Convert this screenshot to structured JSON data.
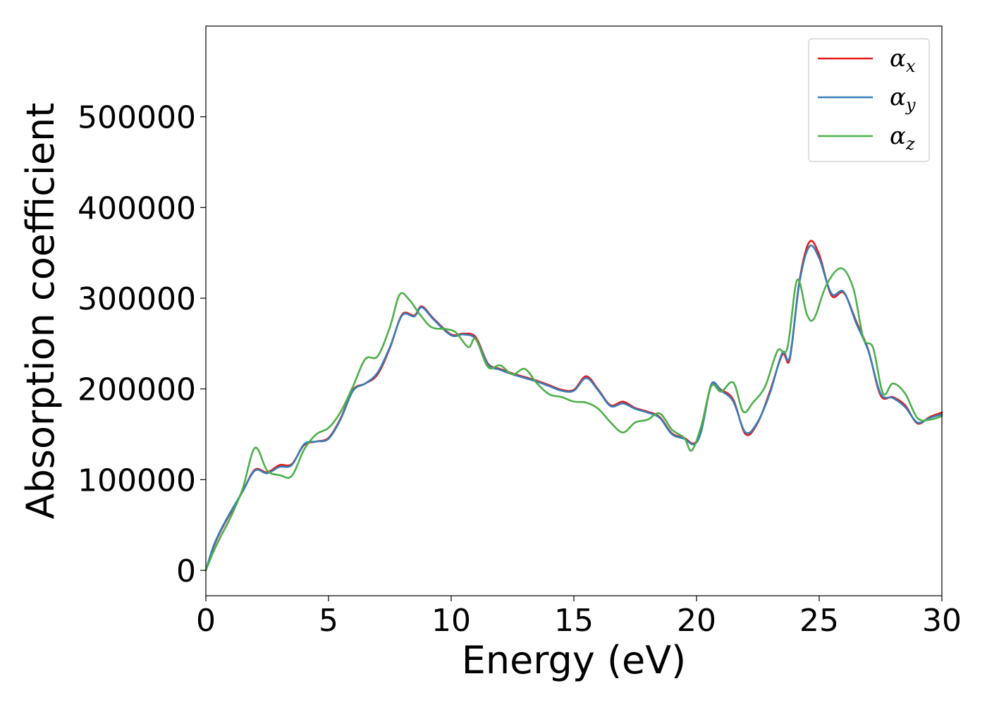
{
  "chart_data": {
    "type": "line",
    "title": "",
    "xlabel": "Energy (eV)",
    "ylabel": "Absorption coefficient",
    "xlim": [
      0,
      30
    ],
    "ylim": [
      -28000,
      600000
    ],
    "xticks": [
      0,
      5,
      10,
      15,
      20,
      25,
      30
    ],
    "yticks": [
      0,
      100000,
      200000,
      300000,
      400000,
      500000
    ],
    "grid": false,
    "legend_position": "top-right",
    "series": [
      {
        "name": "α",
        "subscript": "x",
        "color": "#e41a1c",
        "points": [
          [
            0,
            0
          ],
          [
            0.3,
            25000
          ],
          [
            0.6,
            43000
          ],
          [
            1.0,
            63000
          ],
          [
            1.5,
            87000
          ],
          [
            2.0,
            111000
          ],
          [
            2.5,
            108000
          ],
          [
            3.0,
            116000
          ],
          [
            3.5,
            117000
          ],
          [
            4.0,
            138000
          ],
          [
            4.5,
            142000
          ],
          [
            5.0,
            146000
          ],
          [
            5.5,
            168000
          ],
          [
            6.0,
            199000
          ],
          [
            6.5,
            206000
          ],
          [
            7.0,
            216000
          ],
          [
            7.5,
            245000
          ],
          [
            8.0,
            282000
          ],
          [
            8.5,
            281000
          ],
          [
            8.8,
            291000
          ],
          [
            9.3,
            277000
          ],
          [
            10.0,
            260000
          ],
          [
            10.5,
            261000
          ],
          [
            11.0,
            257000
          ],
          [
            11.5,
            228000
          ],
          [
            12.0,
            222000
          ],
          [
            12.5,
            217000
          ],
          [
            13.0,
            213000
          ],
          [
            13.5,
            209000
          ],
          [
            14.0,
            204000
          ],
          [
            14.5,
            199000
          ],
          [
            15.0,
            199000
          ],
          [
            15.5,
            214000
          ],
          [
            16.0,
            199000
          ],
          [
            16.5,
            182000
          ],
          [
            17.0,
            186000
          ],
          [
            17.5,
            179000
          ],
          [
            18.0,
            175000
          ],
          [
            18.5,
            169000
          ],
          [
            19.0,
            151000
          ],
          [
            19.5,
            146000
          ],
          [
            19.9,
            140000
          ],
          [
            20.2,
            155000
          ],
          [
            20.6,
            204000
          ],
          [
            21.0,
            199000
          ],
          [
            21.5,
            188000
          ],
          [
            22.0,
            150000
          ],
          [
            22.5,
            163000
          ],
          [
            23.0,
            198000
          ],
          [
            23.5,
            238000
          ],
          [
            23.8,
            233000
          ],
          [
            24.2,
            320000
          ],
          [
            24.6,
            362000
          ],
          [
            25.0,
            348000
          ],
          [
            25.5,
            303000
          ],
          [
            26.0,
            306000
          ],
          [
            26.5,
            275000
          ],
          [
            27.0,
            243000
          ],
          [
            27.5,
            193000
          ],
          [
            28.0,
            191000
          ],
          [
            28.5,
            182000
          ],
          [
            29.0,
            162000
          ],
          [
            29.5,
            169000
          ],
          [
            30.0,
            174000
          ]
        ]
      },
      {
        "name": "α",
        "subscript": "y",
        "color": "#377eb8",
        "points": [
          [
            0,
            0
          ],
          [
            0.3,
            26000
          ],
          [
            0.6,
            44000
          ],
          [
            1.0,
            64000
          ],
          [
            1.5,
            87000
          ],
          [
            2.0,
            110000
          ],
          [
            2.5,
            107000
          ],
          [
            3.0,
            114000
          ],
          [
            3.5,
            116000
          ],
          [
            4.0,
            139000
          ],
          [
            4.5,
            142000
          ],
          [
            5.0,
            145000
          ],
          [
            5.5,
            167000
          ],
          [
            6.0,
            198000
          ],
          [
            6.5,
            206000
          ],
          [
            7.0,
            218000
          ],
          [
            7.5,
            246000
          ],
          [
            8.0,
            281000
          ],
          [
            8.5,
            280000
          ],
          [
            8.8,
            290000
          ],
          [
            9.3,
            276000
          ],
          [
            10.0,
            259000
          ],
          [
            10.5,
            260000
          ],
          [
            11.0,
            255000
          ],
          [
            11.5,
            227000
          ],
          [
            12.0,
            221000
          ],
          [
            12.5,
            216000
          ],
          [
            13.0,
            212000
          ],
          [
            13.5,
            208000
          ],
          [
            14.0,
            203000
          ],
          [
            14.5,
            198000
          ],
          [
            15.0,
            198000
          ],
          [
            15.5,
            212000
          ],
          [
            16.0,
            198000
          ],
          [
            16.5,
            181000
          ],
          [
            17.0,
            184000
          ],
          [
            17.5,
            178000
          ],
          [
            18.0,
            174000
          ],
          [
            18.5,
            168000
          ],
          [
            19.0,
            150000
          ],
          [
            19.5,
            145000
          ],
          [
            19.9,
            139000
          ],
          [
            20.2,
            154000
          ],
          [
            20.6,
            205000
          ],
          [
            21.0,
            198000
          ],
          [
            21.5,
            186000
          ],
          [
            22.0,
            152000
          ],
          [
            22.5,
            164000
          ],
          [
            23.0,
            196000
          ],
          [
            23.5,
            240000
          ],
          [
            23.8,
            235000
          ],
          [
            24.2,
            318000
          ],
          [
            24.6,
            357000
          ],
          [
            25.0,
            344000
          ],
          [
            25.5,
            305000
          ],
          [
            26.0,
            307000
          ],
          [
            26.5,
            273000
          ],
          [
            27.0,
            242000
          ],
          [
            27.5,
            195000
          ],
          [
            28.0,
            190000
          ],
          [
            28.5,
            180000
          ],
          [
            29.0,
            163000
          ],
          [
            29.5,
            168000
          ],
          [
            30.0,
            172000
          ]
        ]
      },
      {
        "name": "α",
        "subscript": "z",
        "color": "#4daf4a",
        "points": [
          [
            0,
            0
          ],
          [
            0.3,
            20000
          ],
          [
            0.6,
            37000
          ],
          [
            1.0,
            58000
          ],
          [
            1.5,
            90000
          ],
          [
            2.0,
            135000
          ],
          [
            2.5,
            110000
          ],
          [
            3.0,
            105000
          ],
          [
            3.5,
            104000
          ],
          [
            4.0,
            133000
          ],
          [
            4.5,
            150000
          ],
          [
            5.0,
            157000
          ],
          [
            5.5,
            175000
          ],
          [
            6.0,
            203000
          ],
          [
            6.5,
            233000
          ],
          [
            7.0,
            236000
          ],
          [
            7.5,
            268000
          ],
          [
            7.9,
            304000
          ],
          [
            8.3,
            298000
          ],
          [
            8.7,
            283000
          ],
          [
            9.2,
            268000
          ],
          [
            9.8,
            266000
          ],
          [
            10.2,
            262000
          ],
          [
            10.7,
            246000
          ],
          [
            11.0,
            255000
          ],
          [
            11.5,
            224000
          ],
          [
            12.0,
            226000
          ],
          [
            12.5,
            216000
          ],
          [
            13.0,
            222000
          ],
          [
            13.5,
            206000
          ],
          [
            14.0,
            194000
          ],
          [
            14.5,
            191000
          ],
          [
            15.0,
            186000
          ],
          [
            15.5,
            185000
          ],
          [
            16.0,
            178000
          ],
          [
            16.5,
            163000
          ],
          [
            17.0,
            152000
          ],
          [
            17.5,
            163000
          ],
          [
            18.0,
            166000
          ],
          [
            18.5,
            173000
          ],
          [
            19.0,
            155000
          ],
          [
            19.5,
            146000
          ],
          [
            19.8,
            132000
          ],
          [
            20.2,
            160000
          ],
          [
            20.6,
            203000
          ],
          [
            21.0,
            197000
          ],
          [
            21.5,
            207000
          ],
          [
            21.9,
            175000
          ],
          [
            22.3,
            185000
          ],
          [
            22.8,
            203000
          ],
          [
            23.3,
            242000
          ],
          [
            23.7,
            245000
          ],
          [
            24.1,
            320000
          ],
          [
            24.5,
            282000
          ],
          [
            24.8,
            278000
          ],
          [
            25.3,
            315000
          ],
          [
            25.9,
            333000
          ],
          [
            26.4,
            310000
          ],
          [
            26.8,
            256000
          ],
          [
            27.2,
            245000
          ],
          [
            27.6,
            195000
          ],
          [
            28.0,
            206000
          ],
          [
            28.5,
            195000
          ],
          [
            29.0,
            168000
          ],
          [
            29.5,
            166000
          ],
          [
            30.0,
            170000
          ]
        ]
      }
    ]
  }
}
